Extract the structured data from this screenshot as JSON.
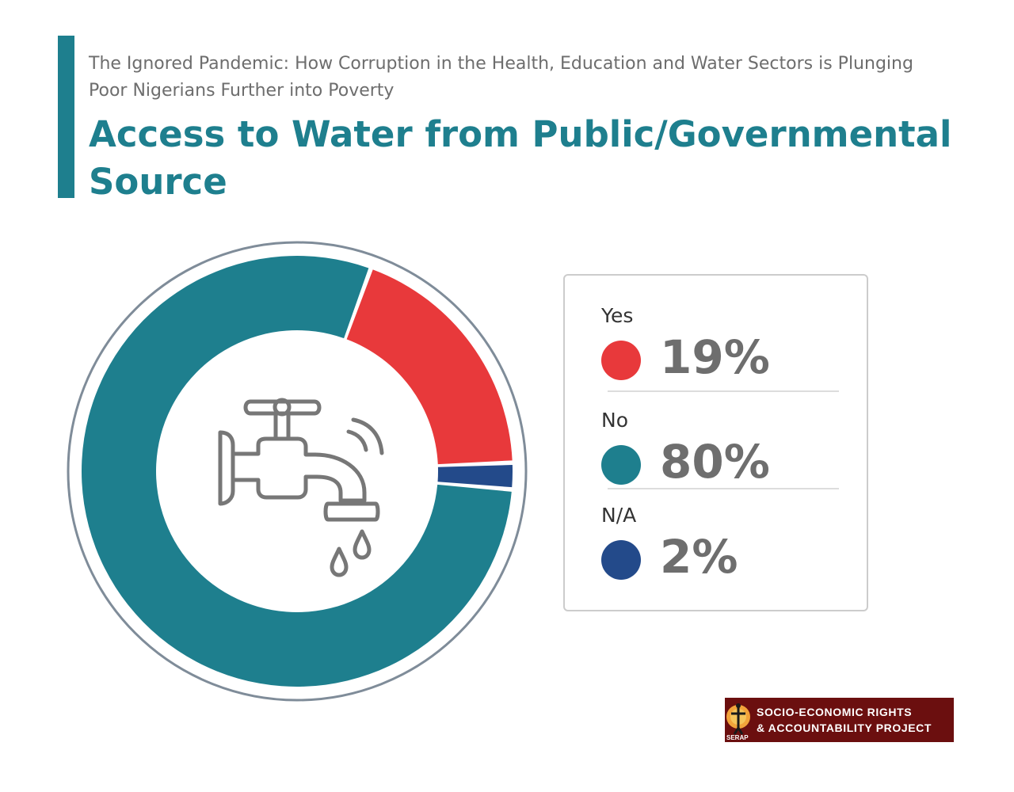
{
  "header": {
    "subtitle": "The Ignored Pandemic: How Corruption in the Health, Education and Water Sectors is Plunging Poor Nigerians Further into Poverty",
    "title": "Access to Water from Public/Governmental Source"
  },
  "colors": {
    "accent": "#1e7f8e",
    "yes": "#e8393b",
    "no": "#1e7f8e",
    "na": "#234a8a",
    "ring": "#7f8c99"
  },
  "icons": {
    "center": "water-tap-icon"
  },
  "chart_data": {
    "type": "pie",
    "style": "donut",
    "title": "Access to Water from Public/Governmental Source",
    "series": [
      {
        "name": "Yes",
        "value": 19,
        "label": "19%",
        "color": "#e8393b"
      },
      {
        "name": "No",
        "value": 80,
        "label": "80%",
        "color": "#1e7f8e"
      },
      {
        "name": "N/A",
        "value": 2,
        "label": "2%",
        "color": "#234a8a"
      }
    ],
    "legend": "right"
  },
  "logo": {
    "line1": "SOCIO-ECONOMIC RIGHTS",
    "line2": "& ACCOUNTABILITY PROJECT",
    "abbr": "SERAP"
  }
}
